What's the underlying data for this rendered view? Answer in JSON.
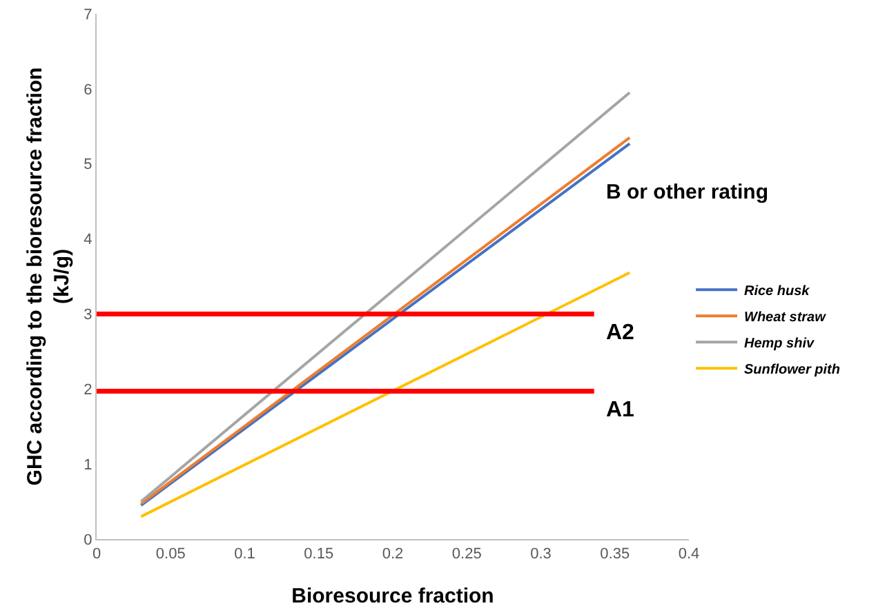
{
  "chart_data": {
    "type": "line",
    "xlabel": "Bioresource fraction",
    "ylabel": "GHC according to the bioresource fraction (kJ/g)",
    "x": [
      0.03,
      0.36
    ],
    "series": [
      {
        "name": "Rice husk",
        "color": "#4472c4",
        "values": [
          0.45,
          5.27
        ]
      },
      {
        "name": "Wheat straw",
        "color": "#ed7d31",
        "values": [
          0.47,
          5.35
        ]
      },
      {
        "name": "Hemp shiv",
        "color": "#a5a5a5",
        "values": [
          0.5,
          5.95
        ]
      },
      {
        "name": "Sunflower pith",
        "color": "#ffc000",
        "values": [
          0.3,
          3.55
        ]
      }
    ],
    "xlim": [
      0,
      0.4
    ],
    "xticks": [
      0,
      0.05,
      0.1,
      0.15,
      0.2,
      0.25,
      0.3,
      0.35,
      0.4
    ],
    "ylim": [
      0,
      7
    ],
    "yticks": [
      0,
      1,
      2,
      3,
      4,
      5,
      6,
      7
    ],
    "ref_lines": [
      {
        "axis": "y",
        "value": 3,
        "label": "A2",
        "color": "#ff0000"
      },
      {
        "axis": "y",
        "value": 1.97,
        "label": "A1",
        "color": "#ff0000"
      }
    ],
    "annotations": [
      "B or other rating"
    ],
    "grid": false,
    "legend": "right",
    "marker": "none",
    "line_style": "solid"
  }
}
